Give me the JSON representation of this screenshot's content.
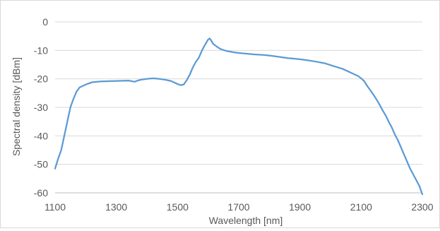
{
  "chart_data": {
    "type": "line",
    "title": "",
    "xlabel": "Wavelength [nm]",
    "ylabel": "Spectral density [dBm]",
    "xlim": [
      1100,
      2300
    ],
    "ylim": [
      -60,
      0
    ],
    "x_ticks": [
      1100,
      1300,
      1500,
      1700,
      1900,
      2100,
      2300
    ],
    "y_ticks": [
      0,
      -10,
      -20,
      -30,
      -40,
      -50,
      -60
    ],
    "grid": {
      "horizontal": true,
      "vertical": false
    },
    "legend": "none",
    "series": [
      {
        "color": "#5b9bd5",
        "x": [
          1100,
          1110,
          1120,
          1130,
          1140,
          1150,
          1160,
          1170,
          1180,
          1200,
          1220,
          1250,
          1280,
          1310,
          1340,
          1360,
          1370,
          1380,
          1400,
          1420,
          1440,
          1460,
          1480,
          1500,
          1510,
          1520,
          1530,
          1540,
          1550,
          1560,
          1570,
          1580,
          1590,
          1600,
          1605,
          1610,
          1615,
          1620,
          1630,
          1640,
          1660,
          1680,
          1700,
          1720,
          1750,
          1780,
          1800,
          1820,
          1840,
          1860,
          1880,
          1900,
          1920,
          1950,
          1980,
          2010,
          2040,
          2070,
          2090,
          2100,
          2110,
          2120,
          2130,
          2140,
          2150,
          2160,
          2170,
          2180,
          2190,
          2200,
          2210,
          2220,
          2230,
          2240,
          2250,
          2260,
          2270,
          2280,
          2290,
          2300
        ],
        "y": [
          -51.5,
          -48,
          -45,
          -40,
          -35,
          -30,
          -27,
          -24.5,
          -23,
          -22,
          -21.2,
          -20.9,
          -20.8,
          -20.7,
          -20.6,
          -21,
          -20.6,
          -20.3,
          -20,
          -19.8,
          -20,
          -20.3,
          -20.8,
          -21.8,
          -22.2,
          -22,
          -20.5,
          -18.5,
          -16,
          -14,
          -12.5,
          -10,
          -8,
          -6.2,
          -5.8,
          -6.5,
          -7.5,
          -8,
          -8.8,
          -9.5,
          -10.2,
          -10.6,
          -10.9,
          -11.1,
          -11.4,
          -11.6,
          -11.8,
          -12.1,
          -12.4,
          -12.7,
          -12.9,
          -13.1,
          -13.4,
          -13.9,
          -14.5,
          -15.5,
          -16.5,
          -18,
          -19,
          -19.8,
          -20.8,
          -22.5,
          -24,
          -25.5,
          -27.2,
          -29,
          -31,
          -32.8,
          -35,
          -37,
          -39.5,
          -41.5,
          -44,
          -46.5,
          -49,
          -51.5,
          -53.5,
          -55.5,
          -57.5,
          -60.5
        ]
      }
    ]
  }
}
